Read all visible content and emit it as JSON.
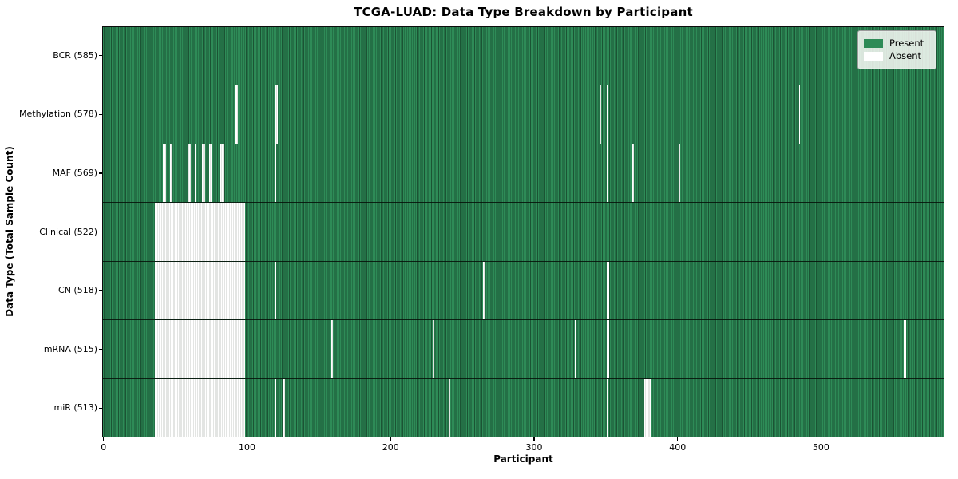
{
  "title": "TCGA-LUAD: Data Type Breakdown by Participant",
  "colors": {
    "present": "#2e8b57",
    "present_edge": "#1b5434",
    "absent": "#ffffff",
    "absent_edge": "#c7cbc7",
    "row_separator": "#0a0f08",
    "spine": "#0c0c0c",
    "legend_background": "#fafaf8"
  },
  "legend": {
    "position": "upper right",
    "items": [
      {
        "label": "Present",
        "swatch": "#2e8b57"
      },
      {
        "label": "Absent",
        "swatch": "#ffffff"
      }
    ]
  },
  "chart_data": {
    "type": "heatmap",
    "title": "TCGA-LUAD: Data Type Breakdown by Participant",
    "xlabel": "Participant",
    "ylabel": "Data Type (Total Sample Count)",
    "xlim": [
      0,
      585
    ],
    "x_ticks": [
      0,
      100,
      200,
      300,
      400,
      500
    ],
    "total_participants": 585,
    "grid": false,
    "legend_position": "upper right",
    "cell_states": {
      "present": 1,
      "absent": 0
    },
    "rows": [
      {
        "label": "BCR (585)",
        "data_type": "BCR",
        "present_count": 585,
        "absent_count": 0,
        "absent_ranges": []
      },
      {
        "label": "Methylation (578)",
        "data_type": "Methylation",
        "present_count": 578,
        "absent_count": 7,
        "absent_ranges": [
          [
            92,
            93
          ],
          [
            120,
            121
          ],
          [
            346,
            346
          ],
          [
            351,
            351
          ],
          [
            485,
            485
          ]
        ]
      },
      {
        "label": "MAF (569)",
        "data_type": "MAF",
        "present_count": 569,
        "absent_count": 16,
        "absent_ranges": [
          [
            42,
            43
          ],
          [
            47,
            47
          ],
          [
            59,
            60
          ],
          [
            64,
            64
          ],
          [
            69,
            70
          ],
          [
            74,
            75
          ],
          [
            82,
            83
          ],
          [
            120,
            120
          ],
          [
            351,
            351
          ],
          [
            369,
            369
          ],
          [
            401,
            401
          ]
        ]
      },
      {
        "label": "Clinical (522)",
        "data_type": "Clinical",
        "present_count": 522,
        "absent_count": 63,
        "absent_ranges": [
          [
            36,
            98
          ]
        ]
      },
      {
        "label": "CN (518)",
        "data_type": "CN",
        "present_count": 518,
        "absent_count": 67,
        "absent_ranges": [
          [
            36,
            98
          ],
          [
            120,
            120
          ],
          [
            265,
            265
          ],
          [
            351,
            352
          ]
        ]
      },
      {
        "label": "mRNA (515)",
        "data_type": "mRNA",
        "present_count": 515,
        "absent_count": 70,
        "absent_ranges": [
          [
            36,
            98
          ],
          [
            159,
            159
          ],
          [
            230,
            230
          ],
          [
            329,
            329
          ],
          [
            351,
            352
          ],
          [
            558,
            559
          ]
        ]
      },
      {
        "label": "miR (513)",
        "data_type": "miR",
        "present_count": 513,
        "absent_count": 72,
        "absent_ranges": [
          [
            36,
            98
          ],
          [
            120,
            120
          ],
          [
            126,
            126
          ],
          [
            241,
            241
          ],
          [
            351,
            351
          ],
          [
            377,
            381
          ]
        ]
      }
    ]
  }
}
